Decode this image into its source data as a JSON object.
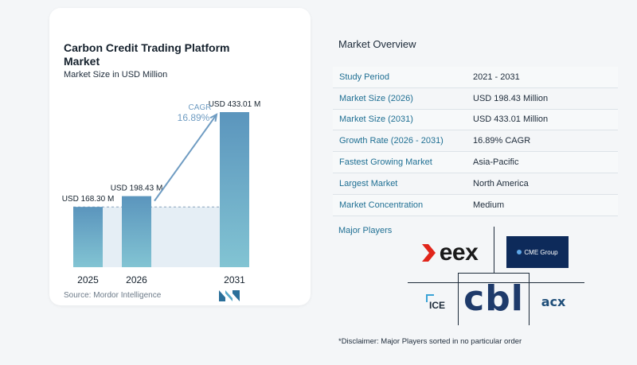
{
  "chart_data": {
    "type": "bar",
    "title": "Carbon Credit Trading Platform Market",
    "subtitle": "Market Size in USD Million",
    "categories": [
      "2025",
      "2026",
      "2031"
    ],
    "values": [
      168.3,
      198.43,
      433.01
    ],
    "data_labels": [
      "USD 168.30 M",
      "USD 198.43 M",
      "USD 433.01 M"
    ],
    "annotation": {
      "label": "CAGR",
      "value": "16.89%"
    },
    "colors": {
      "bar_top": "#5b95bd",
      "bar_bottom": "#82c4d3",
      "band": "#e5eef5",
      "arrow": "#6f9cc2",
      "cagr_text": "#6f9cc2"
    },
    "grid": false,
    "legend": "none"
  },
  "source": "Source: Mordor Intelligence",
  "overview": {
    "title": "Market Overview",
    "rows": [
      {
        "label": "Study Period",
        "value": "2021 - 2031"
      },
      {
        "label": "Market Size (2026)",
        "value": "USD 198.43 Million"
      },
      {
        "label": "Market Size (2031)",
        "value": "USD 433.01 Million"
      },
      {
        "label": "Growth Rate (2026 - 2031)",
        "value": "16.89% CAGR"
      },
      {
        "label": "Fastest Growing Market",
        "value": "Asia-Pacific"
      },
      {
        "label": "Largest Market",
        "value": "North America"
      },
      {
        "label": "Market Concentration",
        "value": "Medium"
      }
    ]
  },
  "players": {
    "title": "Major Players",
    "logos": [
      "eex",
      "CME Group",
      "ICE",
      "cbl",
      "acx"
    ]
  },
  "disclaimer": "*Disclaimer: Major Players sorted in no particular order"
}
